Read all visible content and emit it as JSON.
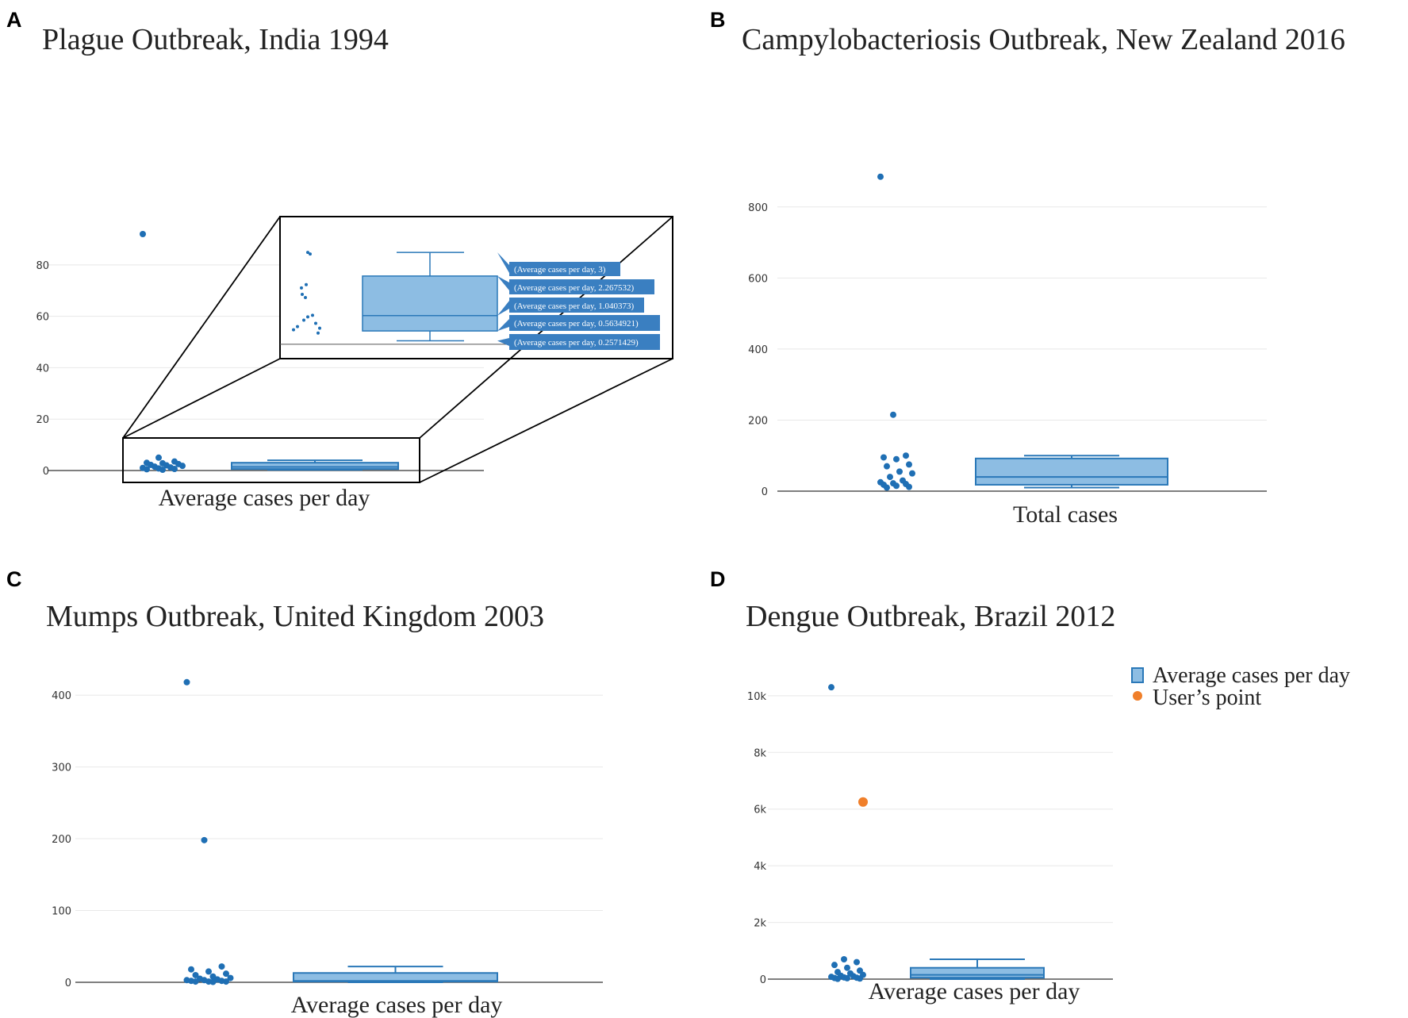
{
  "colors": {
    "point": "#1f6fb4",
    "box_fill": "#8dbde3",
    "box_stroke": "#2a78b8",
    "user_point": "#f07f2a",
    "grid": "#e8e8e8",
    "axis": "#333333",
    "tooltip_bg": "#3a7fc1"
  },
  "chart_data": [
    {
      "panel": "A",
      "type": "box",
      "title": "Plague Outbreak, India 1994",
      "xlabel": "Average cases per day",
      "ylim": [
        0,
        92
      ],
      "yticks": [
        0,
        20,
        40,
        60,
        80
      ],
      "ytick_labels": [
        "0",
        "20",
        "40",
        "60",
        "80"
      ],
      "points": [
        92,
        5,
        3.5,
        3,
        2.8,
        2.5,
        2.2,
        2,
        1.8,
        1.5,
        1.2,
        1,
        0.8,
        0.6,
        0.5,
        0.3
      ],
      "box": {
        "min": 0.2571429,
        "q1": 0.5634921,
        "median": 1.040373,
        "q3": 2.267532,
        "max": 3
      },
      "zoom_tooltips": [
        "(Average cases per day, 3)",
        "(Average cases per day, 2.267532)",
        "(Average cases per day, 1.040373)",
        "(Average cases per day, 0.5634921)",
        "(Average cases per day, 0.2571429)"
      ]
    },
    {
      "panel": "B",
      "type": "box",
      "title": "Campylobacteriosis Outbreak, New Zealand 2016",
      "xlabel": "Total cases",
      "ylim": [
        0,
        900
      ],
      "yticks": [
        0,
        200,
        400,
        600,
        800
      ],
      "ytick_labels": [
        "0",
        "200",
        "400",
        "600",
        "800"
      ],
      "points": [
        885,
        215,
        100,
        95,
        90,
        75,
        70,
        55,
        50,
        40,
        30,
        25,
        22,
        20,
        18,
        15,
        12,
        10
      ],
      "box": {
        "min": 10,
        "q1": 18,
        "median": 40,
        "q3": 92,
        "max": 100
      }
    },
    {
      "panel": "C",
      "type": "box",
      "title": "Mumps Outbreak, United Kingdom 2003",
      "xlabel": "Average cases per day",
      "ylim": [
        0,
        420
      ],
      "yticks": [
        0,
        100,
        200,
        300,
        400
      ],
      "ytick_labels": [
        "0",
        "100",
        "200",
        "300",
        "400"
      ],
      "points": [
        418,
        198,
        22,
        18,
        15,
        12,
        10,
        8,
        6,
        5,
        4,
        3,
        3,
        2,
        2,
        1,
        1,
        1,
        0.5
      ],
      "box": {
        "min": 0,
        "q1": 1,
        "median": 2,
        "q3": 13,
        "max": 22
      }
    },
    {
      "panel": "D",
      "type": "box",
      "title": "Dengue Outbreak, Brazil 2012",
      "xlabel": "Average cases per day",
      "ylim": [
        0,
        10500
      ],
      "yticks": [
        0,
        2000,
        4000,
        6000,
        8000,
        10000
      ],
      "ytick_labels": [
        "0",
        "2k",
        "4k",
        "6k",
        "8k",
        "10k"
      ],
      "points": [
        10300,
        700,
        600,
        500,
        400,
        300,
        250,
        200,
        150,
        120,
        100,
        80,
        60,
        50,
        40,
        30,
        20,
        10
      ],
      "user_point": 6250,
      "box": {
        "min": 0,
        "q1": 50,
        "median": 150,
        "q3": 400,
        "max": 700
      },
      "legend": [
        "Average cases per day",
        "User’s point"
      ]
    }
  ]
}
